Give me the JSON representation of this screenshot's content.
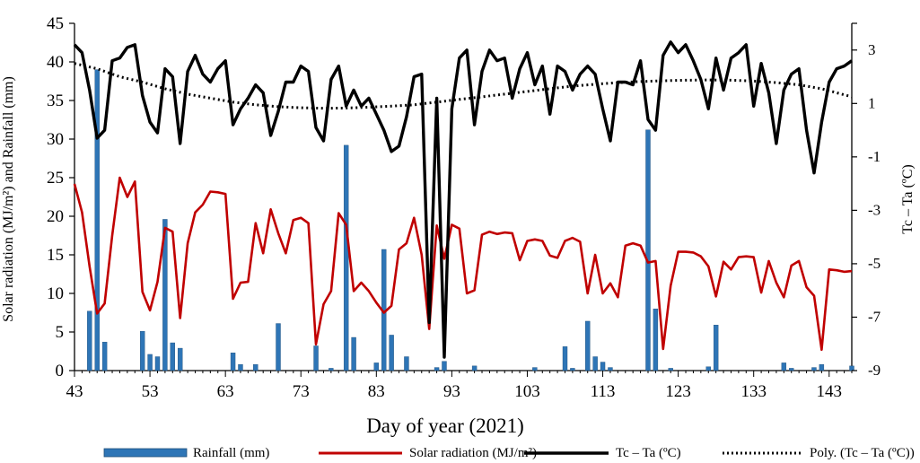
{
  "chart_data": {
    "type": "bar+line",
    "xlabel": "Day of year (2021)",
    "ylabel_left": "Solar radiation (MJ/m²) and Rainfall (mm)",
    "ylabel_right": "Tc – Ta (ºC)",
    "xlim": [
      43,
      146
    ],
    "ylim_left": [
      0,
      45
    ],
    "ylim_right": [
      -9,
      4
    ],
    "x_ticks": [
      43,
      53,
      63,
      73,
      83,
      93,
      103,
      113,
      123,
      133,
      143
    ],
    "y_left_ticks": [
      0,
      5,
      10,
      15,
      20,
      25,
      30,
      35,
      40,
      45
    ],
    "y_right_ticks": [
      -9,
      -7,
      -5,
      -3,
      -1,
      1,
      3
    ],
    "grid": false,
    "legend_position": "bottom",
    "legend": [
      "Rainfall (mm)",
      "Solar radiation (MJ/m²)",
      "Tc – Ta (ºC)",
      "Poly. (Tc – Ta (ºC))"
    ],
    "series": [
      {
        "name": "Rainfall (mm)",
        "type": "bar",
        "axis": "left",
        "color": "#2e75b6",
        "points": [
          [
            45,
            7.7
          ],
          [
            46,
            39.0
          ],
          [
            47,
            3.7
          ],
          [
            52,
            5.1
          ],
          [
            53,
            2.1
          ],
          [
            54,
            1.8
          ],
          [
            55,
            19.6
          ],
          [
            56,
            3.6
          ],
          [
            57,
            2.9
          ],
          [
            64,
            2.3
          ],
          [
            65,
            0.8
          ],
          [
            67,
            0.8
          ],
          [
            70,
            6.1
          ],
          [
            75,
            3.2
          ],
          [
            77,
            0.3
          ],
          [
            79,
            29.2
          ],
          [
            80,
            4.3
          ],
          [
            83,
            1.0
          ],
          [
            84,
            15.7
          ],
          [
            85,
            4.6
          ],
          [
            87,
            1.8
          ],
          [
            91,
            0.4
          ],
          [
            92,
            1.2
          ],
          [
            96,
            0.6
          ],
          [
            104,
            0.4
          ],
          [
            108,
            3.1
          ],
          [
            109,
            0.3
          ],
          [
            111,
            6.4
          ],
          [
            112,
            1.8
          ],
          [
            113,
            1.1
          ],
          [
            114,
            0.4
          ],
          [
            119,
            31.2
          ],
          [
            120,
            8.0
          ],
          [
            122,
            0.3
          ],
          [
            127,
            0.5
          ],
          [
            128,
            5.9
          ],
          [
            137,
            1.0
          ],
          [
            138,
            0.3
          ],
          [
            141,
            0.4
          ],
          [
            142,
            0.8
          ],
          [
            146,
            0.6
          ]
        ]
      },
      {
        "name": "Solar radiation (MJ/m²)",
        "type": "line",
        "axis": "left",
        "color": "#c00000",
        "x": [
          43,
          44,
          45,
          46,
          47,
          48,
          49,
          50,
          51,
          52,
          53,
          54,
          55,
          56,
          57,
          58,
          59,
          60,
          61,
          62,
          63,
          64,
          65,
          66,
          67,
          68,
          69,
          70,
          71,
          72,
          73,
          74,
          75,
          76,
          77,
          78,
          79,
          80,
          81,
          82,
          83,
          84,
          85,
          86,
          87,
          88,
          89,
          90,
          91,
          92,
          93,
          94,
          95,
          96,
          97,
          98,
          99,
          100,
          101,
          102,
          103,
          104,
          105,
          106,
          107,
          108,
          109,
          110,
          111,
          112,
          113,
          114,
          115,
          116,
          117,
          118,
          119,
          120,
          121,
          122,
          123,
          124,
          125,
          126,
          127,
          128,
          129,
          130,
          131,
          132,
          133,
          134,
          135,
          136,
          137,
          138,
          139,
          140,
          141,
          142,
          143,
          144,
          145,
          146
        ],
        "values": [
          24.2,
          20.5,
          13.5,
          7.4,
          8.7,
          17.5,
          25.0,
          22.5,
          24.5,
          10.2,
          7.8,
          11.5,
          18.5,
          18.0,
          6.8,
          16.5,
          20.5,
          21.5,
          23.2,
          23.1,
          22.9,
          9.3,
          11.4,
          11.5,
          19.1,
          15.2,
          20.9,
          17.8,
          15.2,
          19.5,
          19.8,
          19.1,
          3.4,
          8.6,
          10.3,
          20.4,
          18.9,
          10.3,
          11.4,
          10.3,
          8.8,
          7.5,
          8.4,
          15.7,
          16.5,
          19.8,
          15.0,
          5.4,
          18.8,
          14.5,
          18.9,
          18.4,
          10.0,
          10.4,
          17.6,
          18.0,
          17.7,
          17.9,
          17.8,
          14.3,
          16.8,
          17.0,
          16.8,
          14.9,
          14.6,
          16.8,
          17.2,
          16.7,
          10.0,
          15.0,
          10.0,
          11.3,
          9.5,
          16.2,
          16.5,
          16.2,
          14.0,
          14.2,
          2.8,
          11.0,
          15.4,
          15.4,
          15.3,
          14.8,
          13.5,
          9.6,
          14.1,
          13.1,
          14.7,
          14.8,
          14.7,
          10.1,
          14.2,
          11.4,
          9.5,
          13.6,
          14.2,
          10.8,
          9.7,
          2.7,
          13.1,
          13.0,
          12.8,
          12.9
        ]
      },
      {
        "name": "Tc – Ta (ºC)",
        "type": "line",
        "axis": "right",
        "color": "#000000",
        "x": [
          43,
          44,
          45,
          46,
          47,
          48,
          49,
          50,
          51,
          52,
          53,
          54,
          55,
          56,
          57,
          58,
          59,
          60,
          61,
          62,
          63,
          64,
          65,
          66,
          67,
          68,
          69,
          70,
          71,
          72,
          73,
          74,
          75,
          76,
          77,
          78,
          79,
          80,
          81,
          82,
          83,
          84,
          85,
          86,
          87,
          88,
          89,
          90,
          91,
          92,
          93,
          94,
          95,
          96,
          97,
          98,
          99,
          100,
          101,
          102,
          103,
          104,
          105,
          106,
          107,
          108,
          109,
          110,
          111,
          112,
          113,
          114,
          115,
          116,
          117,
          118,
          119,
          120,
          121,
          122,
          123,
          124,
          125,
          126,
          127,
          128,
          129,
          130,
          131,
          132,
          133,
          134,
          135,
          136,
          137,
          138,
          139,
          140,
          141,
          142,
          143,
          144,
          145,
          146
        ],
        "values": [
          3.2,
          2.9,
          1.5,
          -0.3,
          0.0,
          2.6,
          2.7,
          3.1,
          3.2,
          1.3,
          0.3,
          -0.1,
          2.3,
          2.0,
          -0.5,
          2.2,
          2.8,
          2.1,
          1.8,
          2.3,
          2.6,
          0.2,
          0.8,
          1.2,
          1.7,
          1.4,
          -0.2,
          0.7,
          1.8,
          1.8,
          2.4,
          2.2,
          0.1,
          -0.4,
          1.9,
          2.4,
          0.9,
          1.5,
          0.9,
          1.2,
          0.6,
          0.0,
          -0.8,
          -0.6,
          0.5,
          2.0,
          2.1,
          -7.2,
          1.2,
          -8.5,
          0.8,
          2.7,
          3.0,
          0.2,
          2.2,
          3.0,
          2.6,
          2.7,
          1.2,
          2.3,
          2.9,
          1.7,
          2.4,
          0.6,
          2.4,
          2.2,
          1.5,
          2.1,
          2.4,
          2.1,
          0.8,
          -0.4,
          1.8,
          1.8,
          1.7,
          2.6,
          0.4,
          0.0,
          2.8,
          3.3,
          2.9,
          3.2,
          2.6,
          1.9,
          0.8,
          2.7,
          1.5,
          2.7,
          2.9,
          3.2,
          0.9,
          2.5,
          1.4,
          -0.5,
          1.5,
          2.1,
          2.3,
          0.0,
          -1.6,
          0.3,
          1.8,
          2.3,
          2.4,
          2.6
        ]
      },
      {
        "name": "Poly. (Tc – Ta (ºC))",
        "type": "trendline",
        "axis": "right",
        "color": "#000000",
        "x": [
          43,
          46,
          49,
          52,
          55,
          58,
          61,
          64,
          67,
          70,
          73,
          76,
          79,
          82,
          85,
          88,
          91,
          94,
          97,
          100,
          103,
          106,
          109,
          112,
          115,
          118,
          121,
          124,
          127,
          130,
          133,
          136,
          139,
          142,
          146
        ],
        "values": [
          2.5,
          2.3,
          2.0,
          1.8,
          1.55,
          1.35,
          1.2,
          1.05,
          0.95,
          0.88,
          0.84,
          0.82,
          0.83,
          0.86,
          0.9,
          0.95,
          1.05,
          1.15,
          1.25,
          1.35,
          1.45,
          1.55,
          1.65,
          1.72,
          1.78,
          1.82,
          1.85,
          1.87,
          1.88,
          1.87,
          1.84,
          1.78,
          1.7,
          1.55,
          1.25
        ]
      }
    ]
  }
}
